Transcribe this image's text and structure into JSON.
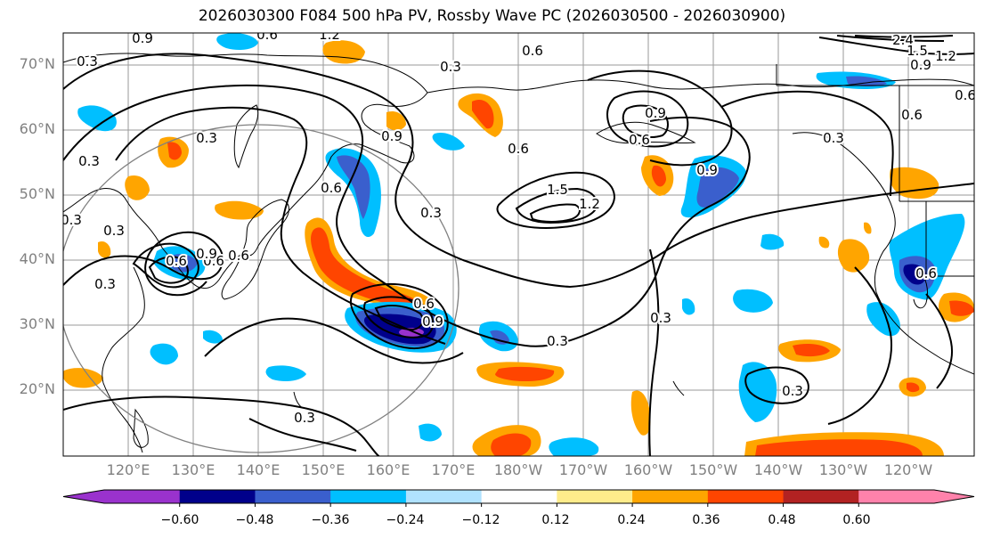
{
  "title": "2026030300 F084 500 hPa PV, Rossby Wave PC (2026030500 - 2026030900)",
  "lat_labels": [
    "70°N",
    "60°N",
    "50°N",
    "40°N",
    "30°N",
    "20°N"
  ],
  "lon_labels": [
    "120°E",
    "130°E",
    "140°E",
    "150°E",
    "160°E",
    "170°E",
    "180°W",
    "170°W",
    "160°W",
    "150°W",
    "140°W",
    "130°W",
    "120°W"
  ],
  "contour_labels": [
    "0.9",
    "1.2",
    "0.6",
    "0.3",
    "0.3",
    "0.6",
    "0.6",
    "0.9",
    "0.3",
    "0.3",
    "1.5",
    "1.2",
    "0.6",
    "0.9",
    "0.3",
    "0.3",
    "0.3",
    "0.3",
    "2.4",
    "1.5",
    "1.2",
    "0.9",
    "0.6",
    "0.6",
    "0.3",
    "0.9",
    "0.6",
    "0.6",
    "0.3",
    "0.3",
    "0.3",
    "0.3",
    "0.6",
    "0.9",
    "0.6",
    "0.6",
    "0.6",
    "0.9"
  ],
  "colorbar": {
    "colors": [
      "#9a32cd",
      "#00008b",
      "#3a5fcd",
      "#00bfff",
      "#b0e2ff",
      "#ffffff",
      "#ffec8b",
      "#ffa500",
      "#ff4500",
      "#b22222",
      "#ff82ab"
    ],
    "ticks": [
      "−0.60",
      "−0.48",
      "−0.36",
      "−0.24",
      "−0.12",
      "0.12",
      "0.24",
      "0.36",
      "0.48",
      "0.60"
    ]
  }
}
